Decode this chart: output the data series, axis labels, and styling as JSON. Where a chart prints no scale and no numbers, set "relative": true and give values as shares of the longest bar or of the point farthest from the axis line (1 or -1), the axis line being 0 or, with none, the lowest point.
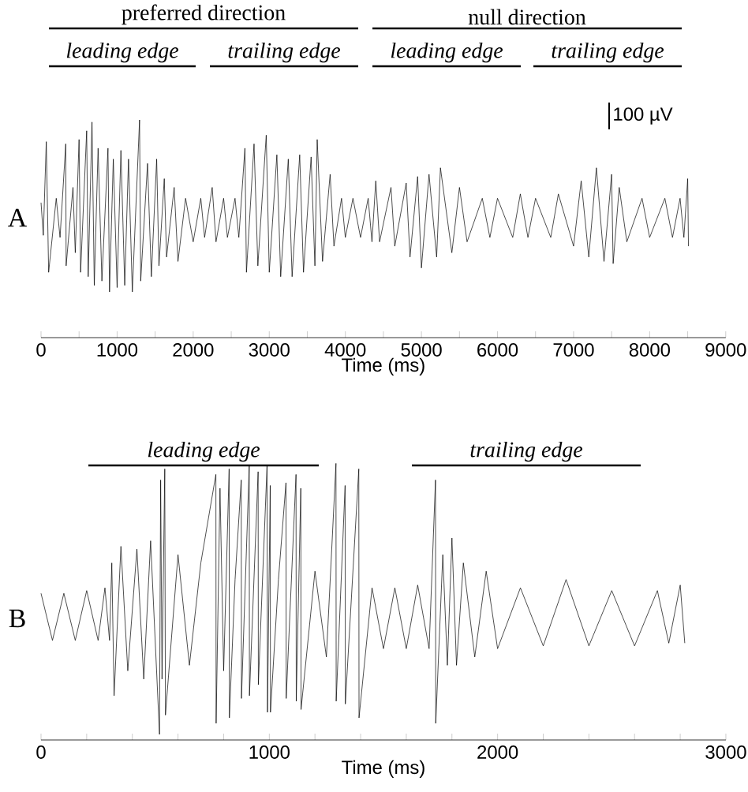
{
  "chart_data": [
    {
      "type": "line",
      "relative": true,
      "xlabel": "Time (ms)",
      "color": "#000000",
      "xlim": [
        0,
        9000
      ],
      "xticks": [
        0,
        {
          "value": 500,
          "label": null
        },
        1000,
        {
          "value": 1500,
          "label": null
        },
        2000,
        {
          "value": 2500,
          "label": null
        },
        3000,
        {
          "value": 3500,
          "label": null
        },
        4000,
        {
          "value": 4500,
          "label": null
        },
        5000,
        {
          "value": 5500,
          "label": null
        },
        6000,
        {
          "value": 6500,
          "label": null
        },
        7000,
        {
          "value": 7500,
          "label": null
        },
        8000,
        {
          "value": 8500,
          "label": null
        },
        9000
      ],
      "x": [
        0,
        30,
        69,
        100,
        200,
        250,
        325,
        330,
        420,
        450,
        500,
        520,
        600,
        620,
        670,
        700,
        750,
        800,
        880,
        900,
        950,
        1000,
        1050,
        1100,
        1150,
        1200,
        1295,
        1310,
        1400,
        1450,
        1520,
        1550,
        1620,
        1650,
        1750,
        1800,
        1900,
        2000,
        2100,
        2150,
        2250,
        2300,
        2400,
        2450,
        2550,
        2600,
        2680,
        2700,
        2800,
        2850,
        2960,
        3000,
        3100,
        3150,
        3250,
        3300,
        3400,
        3450,
        3550,
        3600,
        3630,
        3700,
        3800,
        3850,
        3950,
        4000,
        4100,
        4200,
        4300,
        4350,
        4400,
        4450,
        4600,
        4650,
        4800,
        4850,
        4950,
        5000,
        5100,
        5200,
        5250,
        5400,
        5500,
        5600,
        5800,
        5900,
        6000,
        6200,
        6300,
        6400,
        6500,
        6700,
        6800,
        7000,
        7100,
        7200,
        7300,
        7400,
        7500,
        7520,
        7600,
        7700,
        7900,
        8000,
        8200,
        8300,
        8400,
        8450,
        8500,
        8510
      ],
      "values": [
        0.62,
        0.47,
        0.9,
        0.3,
        0.64,
        0.46,
        0.89,
        0.33,
        0.69,
        0.39,
        0.91,
        0.3,
        0.95,
        0.28,
        0.99,
        0.24,
        0.87,
        0.26,
        0.87,
        0.21,
        0.82,
        0.23,
        0.86,
        0.24,
        0.82,
        0.21,
        1,
        0.26,
        0.8,
        0.28,
        0.82,
        0.33,
        0.73,
        0.37,
        0.69,
        0.35,
        0.64,
        0.44,
        0.64,
        0.46,
        0.69,
        0.44,
        0.64,
        0.46,
        0.64,
        0.46,
        0.87,
        0.3,
        0.89,
        0.33,
        0.93,
        0.3,
        0.84,
        0.28,
        0.82,
        0.28,
        0.84,
        0.3,
        0.83,
        0.33,
        0.91,
        0.35,
        0.75,
        0.42,
        0.64,
        0.46,
        0.64,
        0.46,
        0.64,
        0.44,
        0.72,
        0.44,
        0.69,
        0.42,
        0.71,
        0.37,
        0.74,
        0.32,
        0.75,
        0.37,
        0.78,
        0.39,
        0.69,
        0.44,
        0.64,
        0.46,
        0.64,
        0.46,
        0.66,
        0.46,
        0.64,
        0.46,
        0.66,
        0.42,
        0.72,
        0.37,
        0.78,
        0.35,
        0.75,
        0.34,
        0.69,
        0.44,
        0.64,
        0.46,
        0.64,
        0.46,
        0.64,
        0.46,
        0.73,
        0.42
      ],
      "annotations": [
        "A",
        "100 µV",
        "preferred direction",
        "null direction",
        "leading edge",
        "trailing edge",
        "leading edge",
        "trailing edge"
      ]
    },
    {
      "type": "line",
      "relative": true,
      "xlabel": "Time (ms)",
      "color": "#000000",
      "xlim": [
        0,
        3000
      ],
      "xticks": [
        0,
        {
          "value": 200,
          "label": null
        },
        {
          "value": 400,
          "label": null
        },
        {
          "value": 600,
          "label": null
        },
        {
          "value": 800,
          "label": null
        },
        1000,
        {
          "value": 1200,
          "label": null
        },
        {
          "value": 1400,
          "label": null
        },
        {
          "value": 1600,
          "label": null
        },
        {
          "value": 1800,
          "label": null
        },
        2000,
        {
          "value": 2200,
          "label": null
        },
        {
          "value": 2400,
          "label": null
        },
        {
          "value": 2600,
          "label": null
        },
        {
          "value": 2800,
          "label": null
        },
        3000
      ],
      "x": [
        0,
        50,
        100,
        150,
        200,
        250,
        280,
        300,
        310,
        320,
        350,
        380,
        420,
        450,
        480,
        519,
        524,
        530,
        542,
        545,
        600,
        650,
        700,
        766,
        767,
        784,
        800,
        824,
        825,
        850,
        877,
        878,
        912,
        913,
        951,
        952,
        990,
        992,
        1004,
        1005,
        1040,
        1073,
        1074,
        1117,
        1118,
        1138,
        1139,
        1200,
        1250,
        1292,
        1293,
        1332,
        1333,
        1392,
        1393,
        1450,
        1500,
        1550,
        1600,
        1650,
        1700,
        1728,
        1729,
        1760,
        1780,
        1800,
        1820,
        1850,
        1900,
        1950,
        2000,
        2100,
        2200,
        2300,
        2400,
        2500,
        2600,
        2700,
        2750,
        2800,
        2820
      ],
      "values": [
        0.53,
        0.36,
        0.53,
        0.36,
        0.54,
        0.36,
        0.55,
        0.36,
        0.64,
        0.16,
        0.7,
        0.25,
        0.69,
        0.22,
        0.72,
        0.02,
        0.94,
        0.22,
        0.98,
        0.09,
        0.67,
        0.27,
        0.64,
        0.96,
        0.06,
        0.91,
        0.25,
        0.98,
        0.08,
        0.58,
        0.94,
        0.15,
        0.99,
        0.16,
        0.97,
        0.2,
        0.99,
        0.1,
        0.92,
        0.1,
        0.58,
        0.93,
        0.15,
        0.96,
        0.14,
        0.91,
        0.11,
        0.61,
        0.3,
        1,
        0.14,
        0.92,
        0.13,
        0.98,
        0.08,
        0.55,
        0.33,
        0.55,
        0.33,
        0.56,
        0.33,
        0.94,
        0.06,
        0.67,
        0.27,
        0.73,
        0.27,
        0.64,
        0.3,
        0.61,
        0.33,
        0.55,
        0.34,
        0.58,
        0.34,
        0.54,
        0.34,
        0.54,
        0.35,
        0.56,
        0.35
      ],
      "annotations": [
        "B",
        "leading edge",
        "trailing edge"
      ]
    }
  ]
}
